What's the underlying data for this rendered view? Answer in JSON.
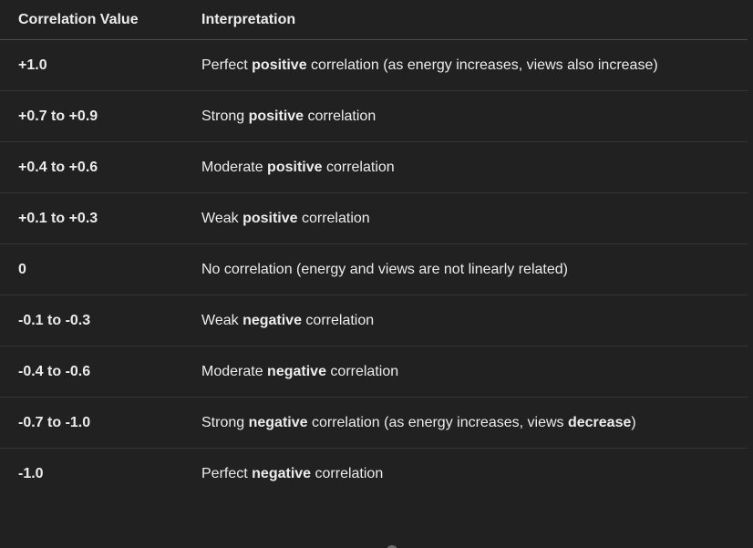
{
  "table": {
    "headers": {
      "value": "Correlation Value",
      "interpretation": "Interpretation"
    },
    "rows": [
      {
        "value": "+1.0",
        "interp_pre": "Perfect ",
        "interp_bold": "positive",
        "interp_mid": " correlation (as energy increases, views also increase)",
        "interp_bold2": "",
        "interp_post": ""
      },
      {
        "value": "+0.7 to +0.9",
        "interp_pre": "Strong ",
        "interp_bold": "positive",
        "interp_mid": " correlation",
        "interp_bold2": "",
        "interp_post": ""
      },
      {
        "value": "+0.4 to +0.6",
        "interp_pre": "Moderate ",
        "interp_bold": "positive",
        "interp_mid": " correlation",
        "interp_bold2": "",
        "interp_post": ""
      },
      {
        "value": "+0.1 to +0.3",
        "interp_pre": "Weak ",
        "interp_bold": "positive",
        "interp_mid": " correlation",
        "interp_bold2": "",
        "interp_post": ""
      },
      {
        "value": "0",
        "interp_pre": "No correlation (energy and views are not linearly related)",
        "interp_bold": "",
        "interp_mid": "",
        "interp_bold2": "",
        "interp_post": ""
      },
      {
        "value": "-0.1 to -0.3",
        "interp_pre": "Weak ",
        "interp_bold": "negative",
        "interp_mid": " correlation",
        "interp_bold2": "",
        "interp_post": ""
      },
      {
        "value": "-0.4 to -0.6",
        "interp_pre": "Moderate ",
        "interp_bold": "negative",
        "interp_mid": " correlation",
        "interp_bold2": "",
        "interp_post": ""
      },
      {
        "value": "-0.7 to -1.0",
        "interp_pre": "Strong ",
        "interp_bold": "negative",
        "interp_mid": " correlation (as energy increases, views ",
        "interp_bold2": "decrease",
        "interp_post": ")"
      },
      {
        "value": "-1.0",
        "interp_pre": "Perfect ",
        "interp_bold": "negative",
        "interp_mid": " correlation",
        "interp_bold2": "",
        "interp_post": ""
      }
    ]
  },
  "colors": {
    "background": "#212121",
    "text": "#ececec",
    "row_divider": "#353535"
  }
}
